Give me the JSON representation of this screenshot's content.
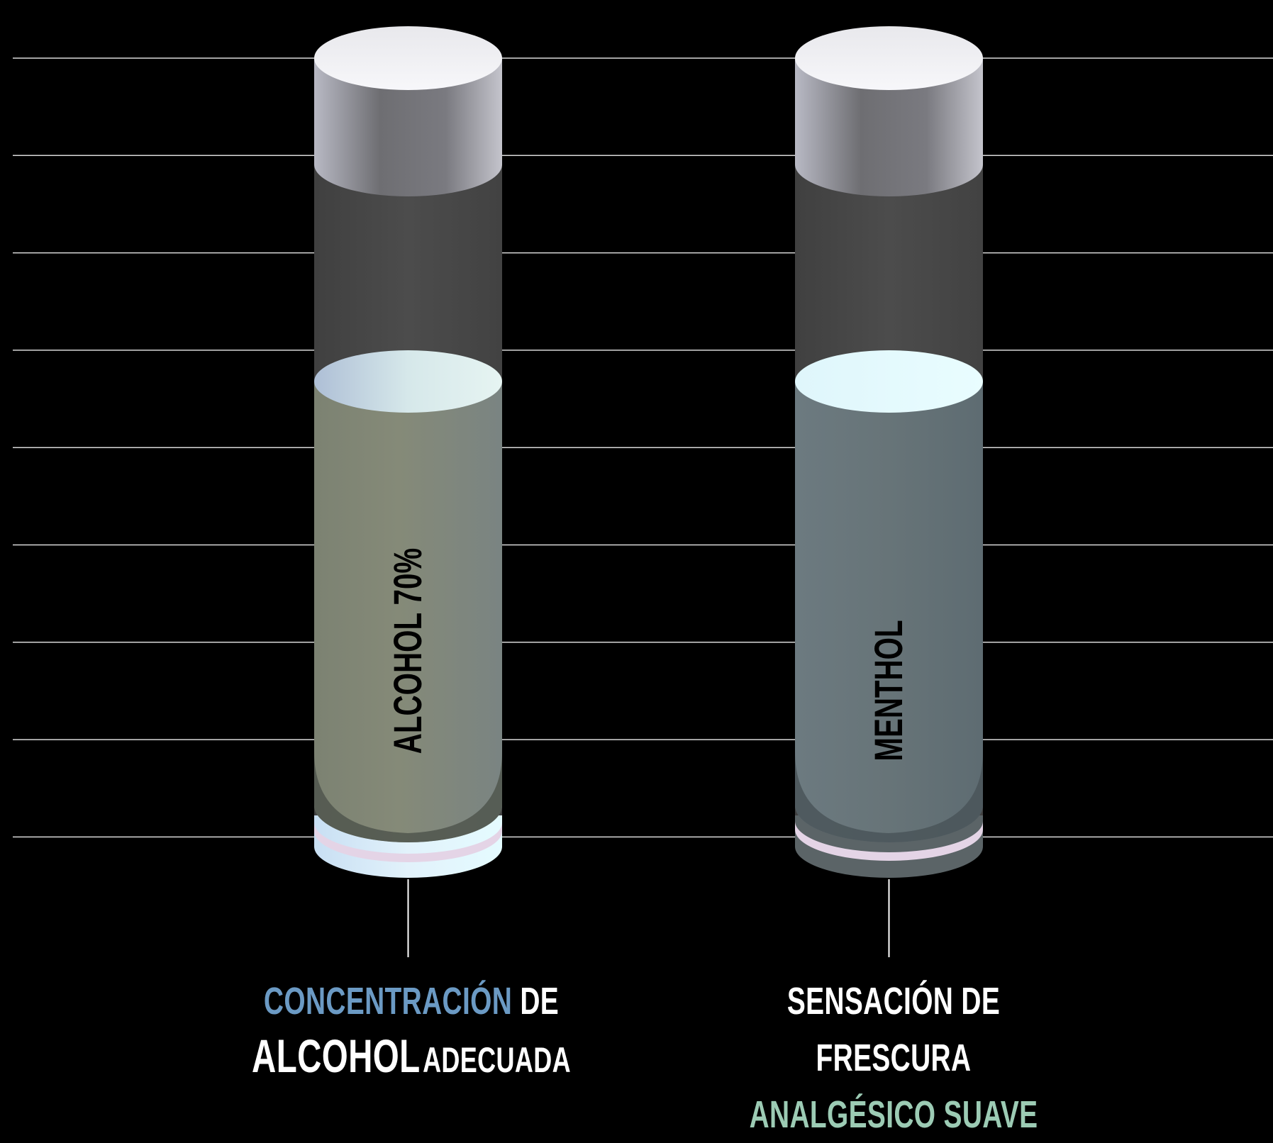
{
  "colors": {
    "background": "#000000",
    "gridline": "#d9d9d9",
    "accent_blue": "#6b9ac4",
    "accent_mint": "#9ccbb4",
    "caption_text": "#ffffff"
  },
  "cylinders": [
    {
      "label": "ALCOHOL 70%",
      "liquid_color": "#828b7e"
    },
    {
      "label": "MENTHOL",
      "liquid_color": "#66747a"
    }
  ],
  "captions": {
    "left": {
      "line1_highlight": "CONCENTRACIÓN",
      "line1_rest": "DE",
      "line2_highlight": "ALCOHOL",
      "line2_rest": "ADECUADA"
    },
    "right": {
      "line1": "SENSACIÓN DE",
      "line2": "FRESCURA",
      "line3_highlight": "ANALGÉSICO SUAVE"
    }
  }
}
